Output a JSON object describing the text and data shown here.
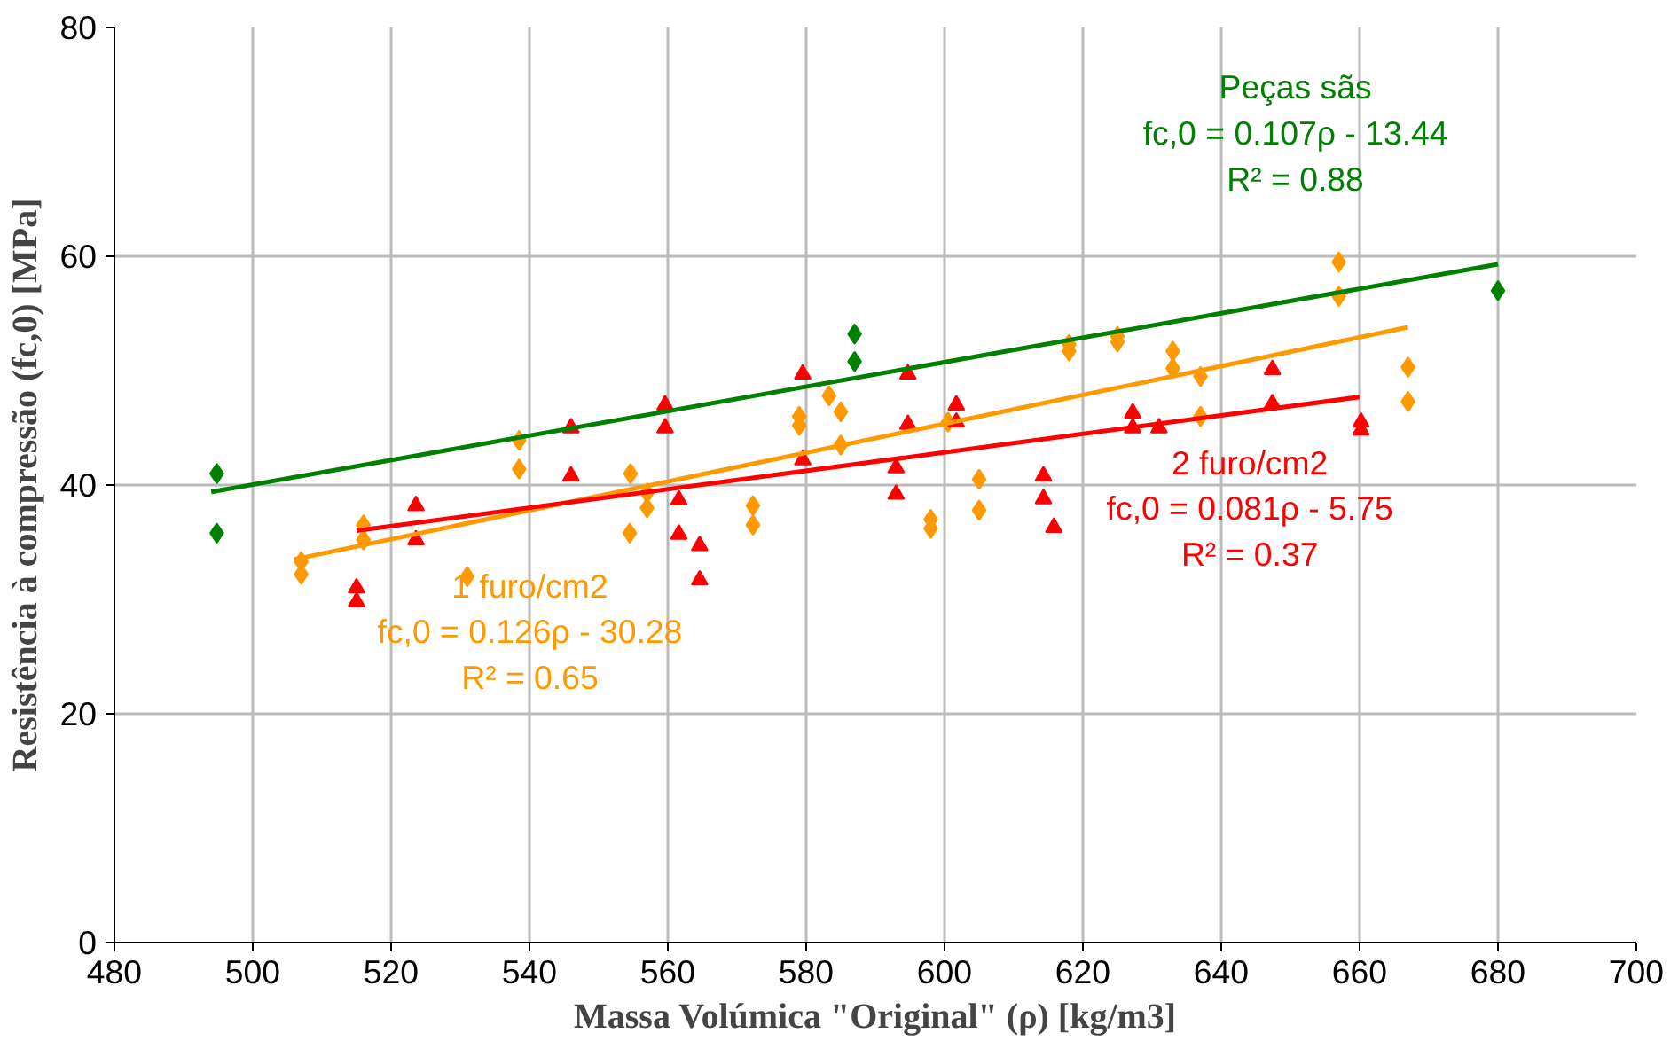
{
  "chart_data": {
    "type": "scatter",
    "xlabel": "Massa Volúmica \"Original\" (ρ) [kg/m3]",
    "ylabel": "Resistência à compressão (fc,0) [MPa]",
    "xlim": [
      480,
      700
    ],
    "xticks": [
      480,
      500,
      520,
      540,
      560,
      580,
      600,
      620,
      640,
      660,
      680,
      700
    ],
    "ylim": [
      0,
      80
    ],
    "yticks": [
      0,
      20,
      40,
      60,
      80
    ],
    "grid": true,
    "series": [
      {
        "name": "Peças sãs",
        "marker": "diamond",
        "color": "#008000",
        "x": [
          494.8,
          494.8,
          587,
          587,
          680
        ],
        "values": [
          41,
          35.8,
          53.2,
          50.8,
          57
        ]
      },
      {
        "name": "1 furo/cm2",
        "marker": "diamond",
        "color": "#ff9900",
        "x": [
          507,
          507,
          516,
          516,
          531,
          538.5,
          538.5,
          554.6,
          554.5,
          557,
          557,
          572.3,
          572.3,
          579,
          579,
          583.3,
          585,
          585,
          598,
          598,
          600.5,
          605,
          605,
          618,
          618,
          625,
          625,
          633,
          633,
          637,
          637,
          657,
          657,
          667,
          667
        ],
        "values": [
          33.3,
          32.2,
          36.5,
          35.2,
          32,
          43.9,
          41.4,
          41,
          35.8,
          38,
          39.3,
          38.2,
          36.5,
          46,
          45.2,
          47.8,
          46.4,
          43.5,
          37,
          36.2,
          45.5,
          40.5,
          37.8,
          52.3,
          51.7,
          53,
          52.5,
          51.7,
          50.2,
          49.5,
          46,
          59.5,
          56.5,
          50.3,
          47.3
        ]
      },
      {
        "name": "2 furo/cm2",
        "marker": "triangle",
        "color": "#ff0000",
        "x": [
          515,
          515,
          523.6,
          523.6,
          546,
          546,
          559.6,
          559.6,
          561.6,
          561.6,
          564.6,
          564.6,
          579.5,
          579.5,
          593,
          593,
          594.7,
          594.7,
          601.7,
          601.7,
          614.3,
          614.3,
          615.8,
          627.2,
          627.2,
          631,
          647.4,
          647.4,
          660.2,
          660.2
        ],
        "values": [
          31,
          29.8,
          38.2,
          35.2,
          45,
          40.8,
          47,
          45,
          38.7,
          35.7,
          34.7,
          31.7,
          49.7,
          42.2,
          41.5,
          39.2,
          49.7,
          45.3,
          47,
          45.5,
          40.8,
          38.8,
          36.3,
          46.3,
          45,
          45,
          50.1,
          47.1,
          45.5,
          44.8
        ]
      },
      {
        "type": "line",
        "color": "#008000",
        "x": [
          494,
          680
        ],
        "values": [
          39.4,
          59.3
        ]
      },
      {
        "type": "line",
        "color": "#ff9900",
        "x": [
          506,
          667
        ],
        "values": [
          33.5,
          53.8
        ]
      },
      {
        "type": "line",
        "color": "#ff0000",
        "x": [
          515,
          660
        ],
        "values": [
          36,
          47.7
        ]
      }
    ],
    "annotations": [
      "fc,0 = 0.107ρ - 13.44\nR² = 0.88",
      "fc,0 = 0.126ρ - 30.28\nR² = 0.65",
      "fc,0 = 0.081ρ - 5.75\nR² = 0.37"
    ]
  }
}
